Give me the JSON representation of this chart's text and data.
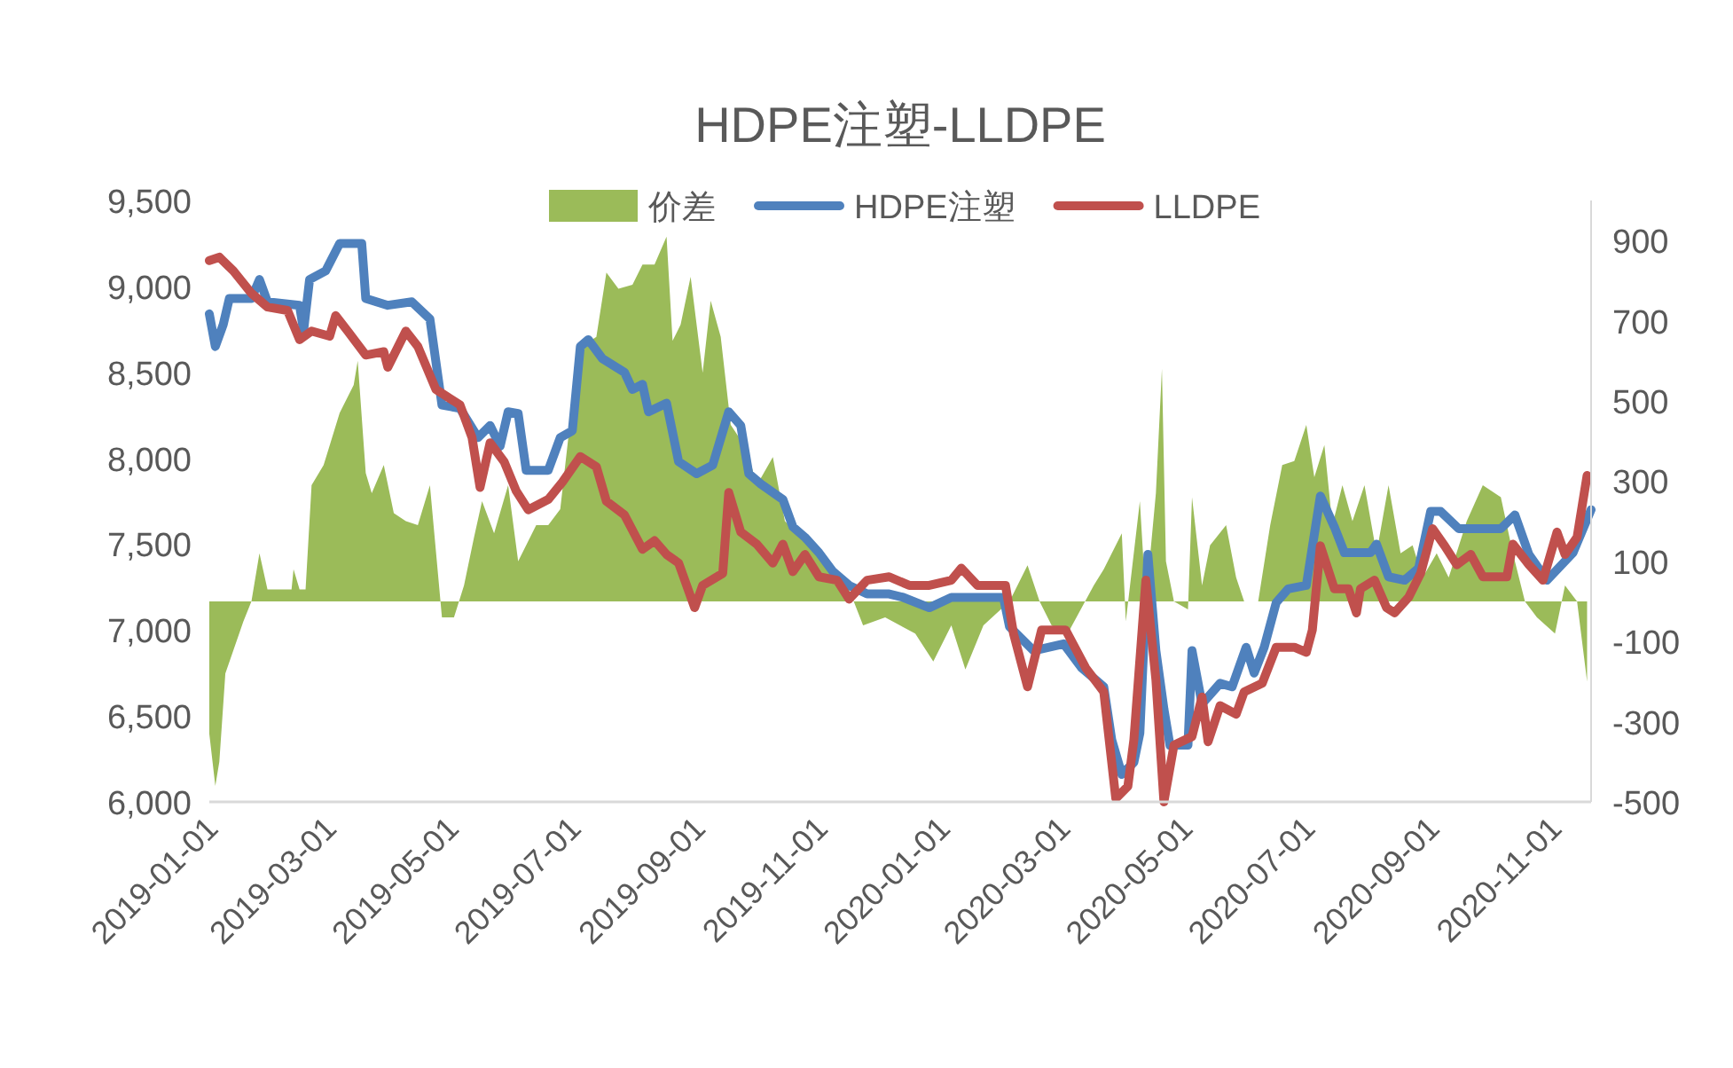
{
  "chart_data": {
    "type": "line",
    "title": "HDPE注塑-LLDPE",
    "legend": "top",
    "xlim": [
      "2019-01-01",
      "2020-11-20"
    ],
    "xticks": [
      "2019-01-01",
      "2019-03-01",
      "2019-05-01",
      "2019-07-01",
      "2019-09-01",
      "2019-11-01",
      "2020-01-01",
      "2020-03-01",
      "2020-05-01",
      "2020-07-01",
      "2020-09-01",
      "2020-11-01"
    ],
    "ylim": [
      6000,
      9500
    ],
    "yticks": [
      {
        "value": 6000,
        "label": "6,000"
      },
      {
        "value": 6500,
        "label": "6,500"
      },
      {
        "value": 7000,
        "label": "7,000"
      },
      {
        "value": 7500,
        "label": "7,500"
      },
      {
        "value": 8000,
        "label": "8,000"
      },
      {
        "value": 8500,
        "label": "8,500"
      },
      {
        "value": 9000,
        "label": "9,000"
      },
      {
        "value": 9500,
        "label": "9,500"
      }
    ],
    "y2lim": [
      -500,
      1000
    ],
    "y2ticks": [
      -500,
      -300,
      -100,
      100,
      300,
      500,
      700,
      900
    ],
    "series": [
      {
        "name": "价差",
        "type": "area",
        "axis": "y2",
        "color": "#9bbb59",
        "x": [
          "2019-01-01",
          "2019-01-04",
          "2019-01-06",
          "2019-01-09",
          "2019-01-18",
          "2019-01-22",
          "2019-01-26",
          "2019-01-30",
          "2019-02-11",
          "2019-02-12",
          "2019-02-15",
          "2019-02-18",
          "2019-02-21",
          "2019-02-27",
          "2019-03-07",
          "2019-03-14",
          "2019-03-16",
          "2019-03-20",
          "2019-03-23",
          "2019-03-29",
          "2019-04-03",
          "2019-04-09",
          "2019-04-15",
          "2019-04-21",
          "2019-04-27",
          "2019-05-03",
          "2019-05-08",
          "2019-05-13",
          "2019-05-17",
          "2019-05-23",
          "2019-05-30",
          "2019-06-04",
          "2019-06-13",
          "2019-06-19",
          "2019-06-25",
          "2019-07-04",
          "2019-07-13",
          "2019-07-18",
          "2019-07-24",
          "2019-07-31",
          "2019-08-05",
          "2019-08-11",
          "2019-08-17",
          "2019-08-20",
          "2019-08-24",
          "2019-08-29",
          "2019-09-04",
          "2019-09-08",
          "2019-09-13",
          "2019-09-18",
          "2019-09-26",
          "2019-10-01",
          "2019-10-09",
          "2019-10-15",
          "2019-10-23",
          "2019-10-30",
          "2019-11-08",
          "2019-11-16",
          "2019-11-23",
          "2019-12-04",
          "2019-12-19",
          "2019-12-28",
          "2020-01-06",
          "2020-01-13",
          "2020-01-22",
          "2020-02-04",
          "2020-02-13",
          "2020-02-19",
          "2020-02-25",
          "2020-03-04",
          "2020-03-17",
          "2020-03-22",
          "2020-03-31",
          "2020-04-02",
          "2020-04-09",
          "2020-04-12",
          "2020-04-17",
          "2020-04-20",
          "2020-04-22",
          "2020-04-26",
          "2020-05-03",
          "2020-05-05",
          "2020-05-10",
          "2020-05-14",
          "2020-05-22",
          "2020-05-27",
          "2020-05-31",
          "2020-06-07",
          "2020-06-13",
          "2020-06-19",
          "2020-06-25",
          "2020-07-01",
          "2020-07-05",
          "2020-07-10",
          "2020-07-14",
          "2020-07-19",
          "2020-07-24",
          "2020-07-30",
          "2020-08-05",
          "2020-08-11",
          "2020-08-17",
          "2020-08-23",
          "2020-08-28",
          "2020-09-04",
          "2020-09-10",
          "2020-09-19",
          "2020-09-27",
          "2020-10-06",
          "2020-10-12",
          "2020-10-18",
          "2020-10-24",
          "2020-11-02",
          "2020-11-07",
          "2020-11-13",
          "2020-11-18"
        ],
        "values": [
          -330,
          -460,
          -400,
          -180,
          -50,
          0,
          120,
          30,
          30,
          80,
          30,
          30,
          290,
          340,
          470,
          540,
          600,
          320,
          270,
          340,
          220,
          200,
          190,
          290,
          -40,
          -40,
          40,
          160,
          250,
          170,
          290,
          100,
          190,
          190,
          230,
          630,
          660,
          820,
          780,
          790,
          840,
          840,
          910,
          650,
          690,
          810,
          570,
          750,
          660,
          440,
          380,
          290,
          360,
          200,
          160,
          120,
          80,
          30,
          -60,
          -40,
          -80,
          -150,
          -60,
          -170,
          -60,
          0,
          90,
          0,
          -60,
          -80,
          40,
          80,
          170,
          -50,
          250,
          0,
          270,
          580,
          100,
          0,
          -20,
          260,
          40,
          140,
          190,
          60,
          0,
          0,
          190,
          340,
          350,
          440,
          310,
          390,
          190,
          290,
          200,
          290,
          120,
          290,
          120,
          140,
          60,
          120,
          60,
          200,
          290,
          260,
          120,
          0,
          -40,
          -80,
          40,
          0,
          -200
        ]
      },
      {
        "name": "HDPE注塑",
        "color": "#4f81bd",
        "x": [
          "2019-01-01",
          "2019-01-04",
          "2019-01-08",
          "2019-01-11",
          "2019-01-22",
          "2019-01-26",
          "2019-01-30",
          "2019-02-15",
          "2019-02-17",
          "2019-02-20",
          "2019-02-28",
          "2019-03-07",
          "2019-03-18",
          "2019-03-20",
          "2019-03-31",
          "2019-04-12",
          "2019-04-21",
          "2019-04-27",
          "2019-05-06",
          "2019-05-15",
          "2019-05-21",
          "2019-05-26",
          "2019-05-30",
          "2019-06-04",
          "2019-06-08",
          "2019-06-19",
          "2019-06-25",
          "2019-07-01",
          "2019-07-05",
          "2019-07-09",
          "2019-07-16",
          "2019-07-27",
          "2019-07-31",
          "2019-08-05",
          "2019-08-08",
          "2019-08-17",
          "2019-08-23",
          "2019-09-01",
          "2019-09-09",
          "2019-09-17",
          "2019-09-23",
          "2019-09-27",
          "2019-10-03",
          "2019-10-14",
          "2019-10-19",
          "2019-10-25",
          "2019-11-01",
          "2019-11-08",
          "2019-11-16",
          "2019-11-25",
          "2019-12-06",
          "2019-12-13",
          "2019-12-26",
          "2020-01-06",
          "2020-02-01",
          "2020-02-04",
          "2020-02-16",
          "2020-03-02",
          "2020-03-11",
          "2020-03-22",
          "2020-03-26",
          "2020-03-31",
          "2020-04-06",
          "2020-04-09",
          "2020-04-13",
          "2020-04-17",
          "2020-04-21",
          "2020-04-24",
          "2020-05-03",
          "2020-05-05",
          "2020-05-10",
          "2020-05-19",
          "2020-05-25",
          "2020-06-01",
          "2020-06-05",
          "2020-06-10",
          "2020-06-16",
          "2020-06-22",
          "2020-07-01",
          "2020-07-08",
          "2020-07-15",
          "2020-07-20",
          "2020-08-02",
          "2020-08-05",
          "2020-08-11",
          "2020-08-19",
          "2020-08-26",
          "2020-09-01",
          "2020-09-06",
          "2020-09-15",
          "2020-10-06",
          "2020-10-13",
          "2020-10-20",
          "2020-10-29",
          "2020-11-11",
          "2020-11-20"
        ],
        "values": [
          8840,
          8650,
          8780,
          8930,
          8930,
          9040,
          8910,
          8890,
          8740,
          9040,
          9090,
          9250,
          9250,
          8930,
          8890,
          8910,
          8810,
          8310,
          8290,
          8120,
          8190,
          8070,
          8270,
          8260,
          7930,
          7930,
          8120,
          8160,
          8650,
          8690,
          8580,
          8500,
          8400,
          8430,
          8270,
          8320,
          7980,
          7910,
          7960,
          8270,
          8190,
          7910,
          7850,
          7760,
          7600,
          7540,
          7450,
          7340,
          7260,
          7210,
          7210,
          7190,
          7130,
          7190,
          7190,
          7020,
          6880,
          6920,
          6780,
          6670,
          6360,
          6160,
          6230,
          6400,
          7440,
          6880,
          6540,
          6330,
          6330,
          6880,
          6570,
          6690,
          6670,
          6900,
          6750,
          6900,
          7160,
          7240,
          7260,
          7780,
          7600,
          7450,
          7450,
          7500,
          7310,
          7290,
          7360,
          7690,
          7690,
          7590,
          7590,
          7670,
          7440,
          7290,
          7450,
          7700
        ]
      },
      {
        "name": "LLDPE",
        "color": "#c0504d",
        "x": [
          "2019-01-01",
          "2019-01-06",
          "2019-01-13",
          "2019-01-22",
          "2019-01-30",
          "2019-02-09",
          "2019-02-15",
          "2019-02-21",
          "2019-03-02",
          "2019-03-05",
          "2019-03-11",
          "2019-03-20",
          "2019-03-29",
          "2019-03-31",
          "2019-04-09",
          "2019-04-15",
          "2019-04-24",
          "2019-05-06",
          "2019-05-12",
          "2019-05-16",
          "2019-05-21",
          "2019-05-28",
          "2019-06-03",
          "2019-06-09",
          "2019-06-19",
          "2019-06-26",
          "2019-07-05",
          "2019-07-13",
          "2019-07-18",
          "2019-07-27",
          "2019-08-05",
          "2019-08-11",
          "2019-08-17",
          "2019-08-23",
          "2019-08-31",
          "2019-09-04",
          "2019-09-14",
          "2019-09-17",
          "2019-09-23",
          "2019-10-01",
          "2019-10-09",
          "2019-10-14",
          "2019-10-19",
          "2019-10-25",
          "2019-11-01",
          "2019-11-10",
          "2019-11-16",
          "2019-11-25",
          "2019-12-06",
          "2019-12-16",
          "2019-12-26",
          "2020-01-06",
          "2020-01-11",
          "2020-01-19",
          "2020-02-02",
          "2020-02-06",
          "2020-02-13",
          "2020-02-20",
          "2020-03-03",
          "2020-03-13",
          "2020-03-22",
          "2020-03-28",
          "2020-04-03",
          "2020-04-06",
          "2020-04-12",
          "2020-04-17",
          "2020-04-21",
          "2020-04-26",
          "2020-05-05",
          "2020-05-10",
          "2020-05-13",
          "2020-05-19",
          "2020-05-27",
          "2020-05-31",
          "2020-06-09",
          "2020-06-16",
          "2020-06-25",
          "2020-07-01",
          "2020-07-04",
          "2020-07-08",
          "2020-07-15",
          "2020-07-22",
          "2020-07-26",
          "2020-07-28",
          "2020-08-04",
          "2020-08-10",
          "2020-08-14",
          "2020-08-21",
          "2020-08-27",
          "2020-09-02",
          "2020-09-08",
          "2020-09-14",
          "2020-09-21",
          "2020-09-27",
          "2020-10-09",
          "2020-10-12",
          "2020-10-20",
          "2020-10-27",
          "2020-11-03",
          "2020-11-07",
          "2020-11-13",
          "2020-11-18"
        ],
        "values": [
          9150,
          9170,
          9090,
          8960,
          8880,
          8860,
          8690,
          8740,
          8710,
          8830,
          8740,
          8600,
          8620,
          8530,
          8740,
          8650,
          8400,
          8310,
          8120,
          7830,
          8090,
          7980,
          7810,
          7700,
          7760,
          7860,
          8010,
          7950,
          7750,
          7670,
          7470,
          7520,
          7440,
          7390,
          7130,
          7260,
          7330,
          7800,
          7570,
          7500,
          7390,
          7500,
          7340,
          7440,
          7310,
          7290,
          7180,
          7290,
          7310,
          7260,
          7260,
          7290,
          7360,
          7260,
          7260,
          6980,
          6670,
          7000,
          7000,
          6780,
          6640,
          6020,
          6090,
          6360,
          7290,
          6710,
          6000,
          6330,
          6380,
          6610,
          6350,
          6560,
          6510,
          6640,
          6690,
          6900,
          6900,
          6870,
          7000,
          7490,
          7240,
          7240,
          7100,
          7240,
          7290,
          7130,
          7100,
          7190,
          7330,
          7590,
          7490,
          7380,
          7440,
          7310,
          7310,
          7500,
          7380,
          7290,
          7570,
          7440,
          7540,
          7900
        ]
      }
    ]
  }
}
